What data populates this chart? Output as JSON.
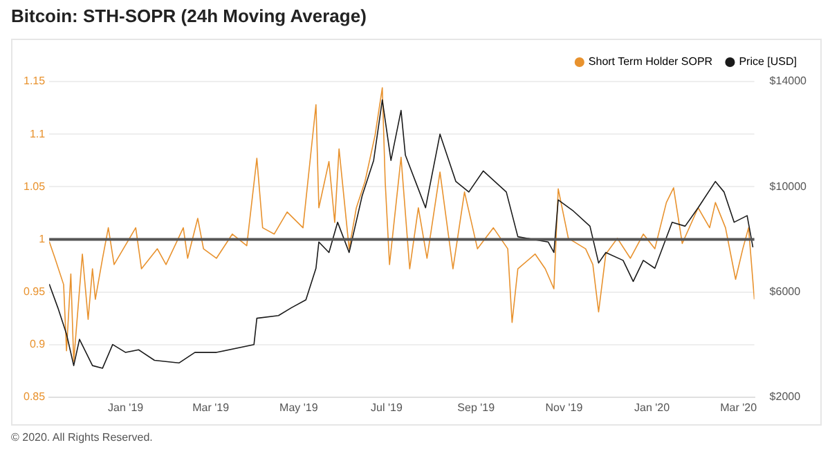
{
  "chart_data": {
    "type": "line",
    "title": "Bitcoin: STH-SOPR (24h Moving Average)",
    "annotations": [
      "© 2020. All Rights Reserved."
    ],
    "xlim": [
      "2018-11-09",
      "2020-03-12"
    ],
    "xticks": [
      {
        "value": "2019-01-01",
        "label": "Jan '19"
      },
      {
        "value": "2019-03-01",
        "label": "Mar '19"
      },
      {
        "value": "2019-05-01",
        "label": "May '19"
      },
      {
        "value": "2019-07-01",
        "label": "Jul '19"
      },
      {
        "value": "2019-09-01",
        "label": "Sep '19"
      },
      {
        "value": "2019-11-01",
        "label": "Nov '19"
      },
      {
        "value": "2020-01-01",
        "label": "Jan '20"
      },
      {
        "value": "2020-03-01",
        "label": "Mar '20"
      }
    ],
    "ylim": [
      0.85,
      1.15
    ],
    "yticks": [
      0.85,
      0.9,
      0.95,
      1,
      1.05,
      1.1,
      1.15
    ],
    "y2lim": [
      2000,
      14000
    ],
    "y2ticks": [
      {
        "value": 2000,
        "label": "$2000"
      },
      {
        "value": 6000,
        "label": "$6000"
      },
      {
        "value": 10000,
        "label": "$10000"
      },
      {
        "value": 14000,
        "label": "$14000"
      }
    ],
    "grid": "y",
    "legend": "top right",
    "marker": "none",
    "line_style": "solid",
    "ref_lines": [
      {
        "axis": "y",
        "value": 1,
        "color": "#555555"
      }
    ],
    "series": [
      {
        "name": "Short Term Holder SOPR",
        "color": "#e8922e",
        "x": [
          "2018-11-09",
          "2018-11-13",
          "2018-11-19",
          "2018-11-21",
          "2018-11-24",
          "2018-11-26",
          "2018-12-02",
          "2018-12-06",
          "2018-12-09",
          "2018-12-11",
          "2018-12-16",
          "2018-12-20",
          "2018-12-24",
          "2019-01-08",
          "2019-01-12",
          "2019-01-23",
          "2019-01-29",
          "2019-02-10",
          "2019-02-13",
          "2019-02-20",
          "2019-02-24",
          "2019-03-05",
          "2019-03-16",
          "2019-03-26",
          "2019-04-02",
          "2019-04-06",
          "2019-04-14",
          "2019-04-23",
          "2019-05-04",
          "2019-05-13",
          "2019-05-15",
          "2019-05-22",
          "2019-05-26",
          "2019-05-29",
          "2019-06-05",
          "2019-06-10",
          "2019-06-16",
          "2019-06-23",
          "2019-06-28",
          "2019-06-30",
          "2019-07-03",
          "2019-07-11",
          "2019-07-17",
          "2019-07-23",
          "2019-07-29",
          "2019-08-07",
          "2019-08-16",
          "2019-08-24",
          "2019-09-02",
          "2019-09-13",
          "2019-09-23",
          "2019-09-26",
          "2019-09-30",
          "2019-10-12",
          "2019-10-19",
          "2019-10-25",
          "2019-10-28",
          "2019-11-04",
          "2019-11-16",
          "2019-11-21",
          "2019-11-25",
          "2019-11-30",
          "2019-12-08",
          "2019-12-17",
          "2019-12-26",
          "2020-01-03",
          "2020-01-11",
          "2020-01-16",
          "2020-01-22",
          "2020-02-02",
          "2020-02-10",
          "2020-02-14",
          "2020-02-21",
          "2020-02-28",
          "2020-03-04",
          "2020-03-08",
          "2020-03-12"
        ],
        "values": [
          0.998,
          0.982,
          0.957,
          0.894,
          0.967,
          0.884,
          0.986,
          0.924,
          0.972,
          0.943,
          0.982,
          1.011,
          0.976,
          1.011,
          0.972,
          0.991,
          0.976,
          1.011,
          0.982,
          1.02,
          0.991,
          0.982,
          1.005,
          0.994,
          1.077,
          1.011,
          1.005,
          1.026,
          1.011,
          1.128,
          1.03,
          1.074,
          1.016,
          1.086,
          0.991,
          1.03,
          1.055,
          1.099,
          1.144,
          1.055,
          0.976,
          1.078,
          0.972,
          1.03,
          0.982,
          1.064,
          0.972,
          1.045,
          0.991,
          1.011,
          0.991,
          0.921,
          0.972,
          0.986,
          0.972,
          0.953,
          1.048,
          1.001,
          0.991,
          0.976,
          0.931,
          0.986,
          1.001,
          0.982,
          1.005,
          0.991,
          1.035,
          1.049,
          0.996,
          1.03,
          1.011,
          1.035,
          1.011,
          0.962,
          0.991,
          1.011,
          0.943
        ]
      },
      {
        "name": "Price [USD]",
        "color": "#1a1a1a",
        "axis": "y2",
        "x": [
          "2018-11-09",
          "2018-11-15",
          "2018-11-21",
          "2018-11-26",
          "2018-11-30",
          "2018-12-09",
          "2018-12-16",
          "2018-12-23",
          "2019-01-01",
          "2019-01-10",
          "2019-01-21",
          "2019-02-07",
          "2019-02-18",
          "2019-03-05",
          "2019-03-31",
          "2019-04-02",
          "2019-04-17",
          "2019-04-26",
          "2019-05-06",
          "2019-05-13",
          "2019-05-15",
          "2019-05-22",
          "2019-05-28",
          "2019-06-05",
          "2019-06-14",
          "2019-06-22",
          "2019-06-28",
          "2019-07-04",
          "2019-07-11",
          "2019-07-14",
          "2019-07-21",
          "2019-07-28",
          "2019-08-07",
          "2019-08-18",
          "2019-08-27",
          "2019-09-06",
          "2019-09-22",
          "2019-09-30",
          "2019-10-21",
          "2019-10-25",
          "2019-10-28",
          "2019-11-07",
          "2019-11-19",
          "2019-11-25",
          "2019-11-30",
          "2019-12-12",
          "2019-12-19",
          "2019-12-26",
          "2020-01-03",
          "2020-01-15",
          "2020-01-24",
          "2020-02-02",
          "2020-02-14",
          "2020-02-20",
          "2020-02-27",
          "2020-03-07",
          "2020-03-11"
        ],
        "values": [
          6300,
          5400,
          4400,
          3200,
          4200,
          3200,
          3100,
          4000,
          3700,
          3800,
          3400,
          3300,
          3700,
          3700,
          4000,
          5000,
          5100,
          5400,
          5700,
          6900,
          7900,
          7500,
          8650,
          7500,
          9650,
          11000,
          13300,
          11000,
          12900,
          11200,
          10200,
          9200,
          12000,
          10200,
          9800,
          10600,
          9800,
          8100,
          7900,
          7500,
          9500,
          9100,
          8500,
          7100,
          7500,
          7200,
          6400,
          7200,
          6900,
          8650,
          8500,
          9200,
          10200,
          9800,
          8650,
          8900,
          7700
        ]
      }
    ]
  }
}
